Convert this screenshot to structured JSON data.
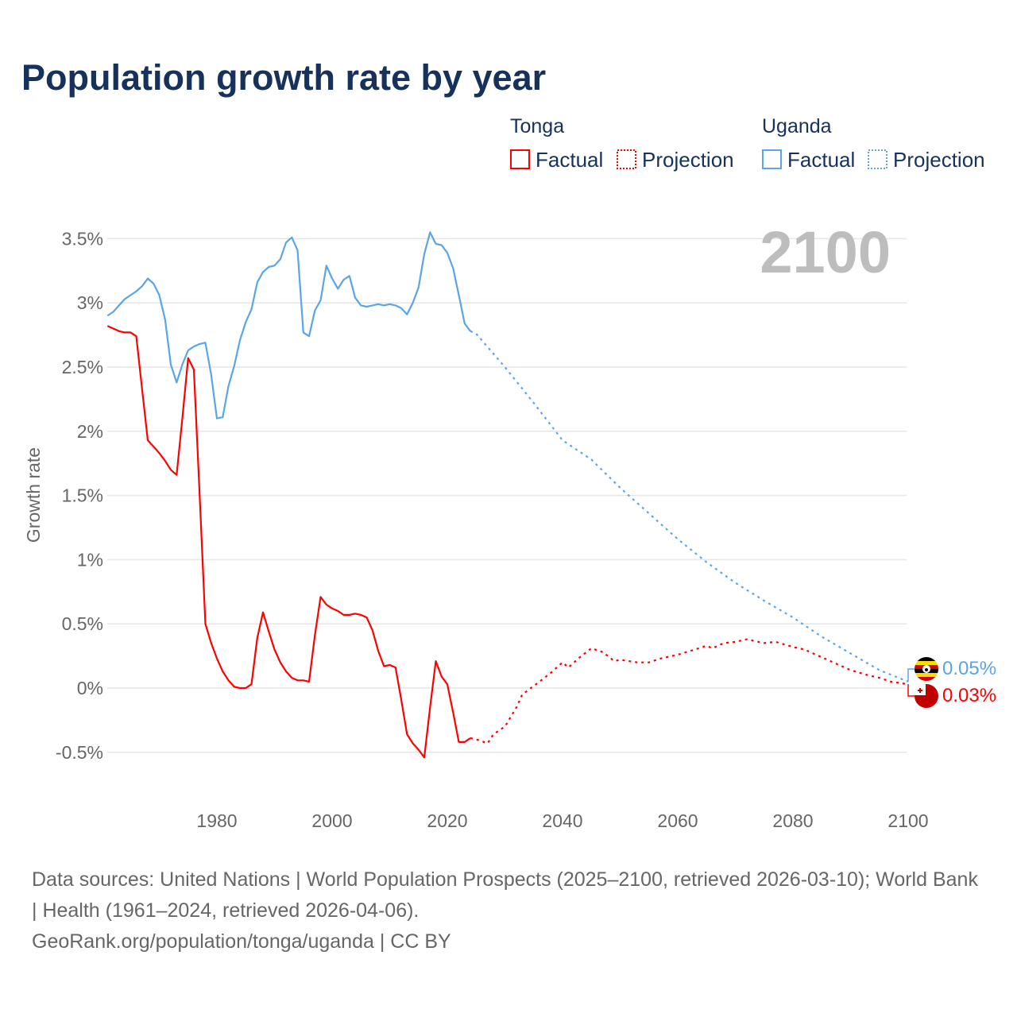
{
  "chart_data": {
    "type": "line",
    "title": "Population growth rate by year",
    "xlabel": "",
    "ylabel": "Growth rate",
    "xlim": [
      1961,
      2100
    ],
    "ylim": [
      -0.75,
      3.75
    ],
    "x_ticks": [
      1980,
      2000,
      2020,
      2040,
      2060,
      2080,
      2100
    ],
    "y_ticks": [
      -0.5,
      0,
      0.5,
      1,
      1.5,
      2,
      2.5,
      3,
      3.5
    ],
    "y_tick_labels": [
      "-0.5%",
      "0%",
      "0.5%",
      "1%",
      "1.5%",
      "2%",
      "2.5%",
      "3%",
      "3.5%"
    ],
    "grid": true,
    "year_display": "2100",
    "legend": {
      "placement": "top-right",
      "groups": [
        {
          "name": "Tonga",
          "factual": "Factual",
          "projection": "Projection"
        },
        {
          "name": "Uganda",
          "factual": "Factual",
          "projection": "Projection"
        }
      ]
    },
    "series": [
      {
        "name": "Tonga",
        "color": "#ff0000",
        "end_label": "0.03%",
        "flag": "tonga-flag",
        "factual": {
          "x": [
            1961,
            1962,
            1963,
            1964,
            1965,
            1966,
            1967,
            1968,
            1969,
            1970,
            1971,
            1972,
            1973,
            1974,
            1975,
            1976,
            1977,
            1978,
            1979,
            1980,
            1981,
            1982,
            1983,
            1984,
            1985,
            1986,
            1987,
            1988,
            1989,
            1990,
            1991,
            1992,
            1993,
            1994,
            1995,
            1996,
            1997,
            1998,
            1999,
            2000,
            2001,
            2002,
            2003,
            2004,
            2005,
            2006,
            2007,
            2008,
            2009,
            2010,
            2011,
            2012,
            2013,
            2014,
            2015,
            2016,
            2017,
            2018,
            2019,
            2020,
            2021,
            2022,
            2023,
            2024
          ],
          "y": [
            2.82,
            2.8,
            2.78,
            2.77,
            2.77,
            2.74,
            2.33,
            1.93,
            1.88,
            1.83,
            1.77,
            1.7,
            1.66,
            2.1,
            2.57,
            2.48,
            1.5,
            0.5,
            0.35,
            0.23,
            0.13,
            0.06,
            0.01,
            0.0,
            0.0,
            0.03,
            0.39,
            0.59,
            0.44,
            0.3,
            0.2,
            0.13,
            0.08,
            0.06,
            0.06,
            0.05,
            0.41,
            0.71,
            0.65,
            0.62,
            0.6,
            0.57,
            0.57,
            0.58,
            0.57,
            0.55,
            0.45,
            0.29,
            0.17,
            0.18,
            0.16,
            -0.09,
            -0.36,
            -0.43,
            -0.48,
            -0.54,
            -0.15,
            0.21,
            0.09,
            0.03,
            -0.19,
            -0.42,
            -0.42,
            -0.39
          ]
        },
        "projection": {
          "x": [
            2024,
            2025,
            2027,
            2028,
            2030,
            2032,
            2033,
            2036,
            2038,
            2040,
            2041,
            2043,
            2045,
            2047,
            2049,
            2050,
            2053,
            2055,
            2057,
            2060,
            2063,
            2065,
            2066,
            2068,
            2070,
            2072,
            2075,
            2077,
            2080,
            2082,
            2084,
            2086,
            2088,
            2090,
            2093,
            2095,
            2097,
            2100
          ],
          "y": [
            -0.39,
            -0.4,
            -0.43,
            -0.36,
            -0.3,
            -0.15,
            -0.05,
            0.05,
            0.12,
            0.2,
            0.16,
            0.24,
            0.31,
            0.28,
            0.21,
            0.22,
            0.2,
            0.2,
            0.23,
            0.26,
            0.3,
            0.33,
            0.31,
            0.35,
            0.36,
            0.38,
            0.35,
            0.36,
            0.32,
            0.3,
            0.26,
            0.22,
            0.18,
            0.14,
            0.1,
            0.08,
            0.05,
            0.03
          ]
        }
      },
      {
        "name": "Uganda",
        "color": "#5aa5e8",
        "end_label": "0.05%",
        "flag": "uganda-flag",
        "factual": {
          "x": [
            1961,
            1962,
            1963,
            1964,
            1965,
            1966,
            1967,
            1968,
            1969,
            1970,
            1971,
            1972,
            1973,
            1974,
            1975,
            1976,
            1977,
            1978,
            1979,
            1980,
            1981,
            1982,
            1983,
            1984,
            1985,
            1986,
            1987,
            1988,
            1989,
            1990,
            1991,
            1992,
            1993,
            1994,
            1995,
            1996,
            1997,
            1998,
            1999,
            2000,
            2001,
            2002,
            2003,
            2004,
            2005,
            2006,
            2007,
            2008,
            2009,
            2010,
            2011,
            2012,
            2013,
            2014,
            2015,
            2016,
            2017,
            2018,
            2019,
            2020,
            2021,
            2022,
            2023,
            2024
          ],
          "y": [
            2.9,
            2.93,
            2.98,
            3.03,
            3.06,
            3.09,
            3.13,
            3.19,
            3.15,
            3.06,
            2.87,
            2.52,
            2.38,
            2.52,
            2.63,
            2.66,
            2.68,
            2.69,
            2.44,
            2.1,
            2.11,
            2.35,
            2.51,
            2.71,
            2.85,
            2.95,
            3.16,
            3.24,
            3.28,
            3.29,
            3.34,
            3.47,
            3.51,
            3.41,
            2.77,
            2.74,
            2.94,
            3.02,
            3.29,
            3.19,
            3.11,
            3.18,
            3.21,
            3.04,
            2.98,
            2.97,
            2.98,
            2.99,
            2.98,
            2.99,
            2.98,
            2.96,
            2.91,
            3.0,
            3.12,
            3.38,
            3.55,
            3.46,
            3.45,
            3.39,
            3.27,
            3.06,
            2.84,
            2.78
          ]
        },
        "projection": {
          "x": [
            2024,
            2025,
            2030,
            2035,
            2040,
            2045,
            2050,
            2055,
            2060,
            2065,
            2070,
            2075,
            2080,
            2085,
            2090,
            2095,
            2100
          ],
          "y": [
            2.78,
            2.76,
            2.5,
            2.22,
            1.93,
            1.78,
            1.56,
            1.36,
            1.16,
            0.98,
            0.82,
            0.68,
            0.55,
            0.4,
            0.27,
            0.14,
            0.05
          ]
        }
      }
    ]
  },
  "footer": {
    "sources": "Data sources: United Nations | World Population Prospects (2025–2100, retrieved 2026-03-10); World Bank | Health (1961–2024, retrieved 2026-04-06).",
    "credit": "GeoRank.org/population/tonga/uganda | CC BY"
  }
}
